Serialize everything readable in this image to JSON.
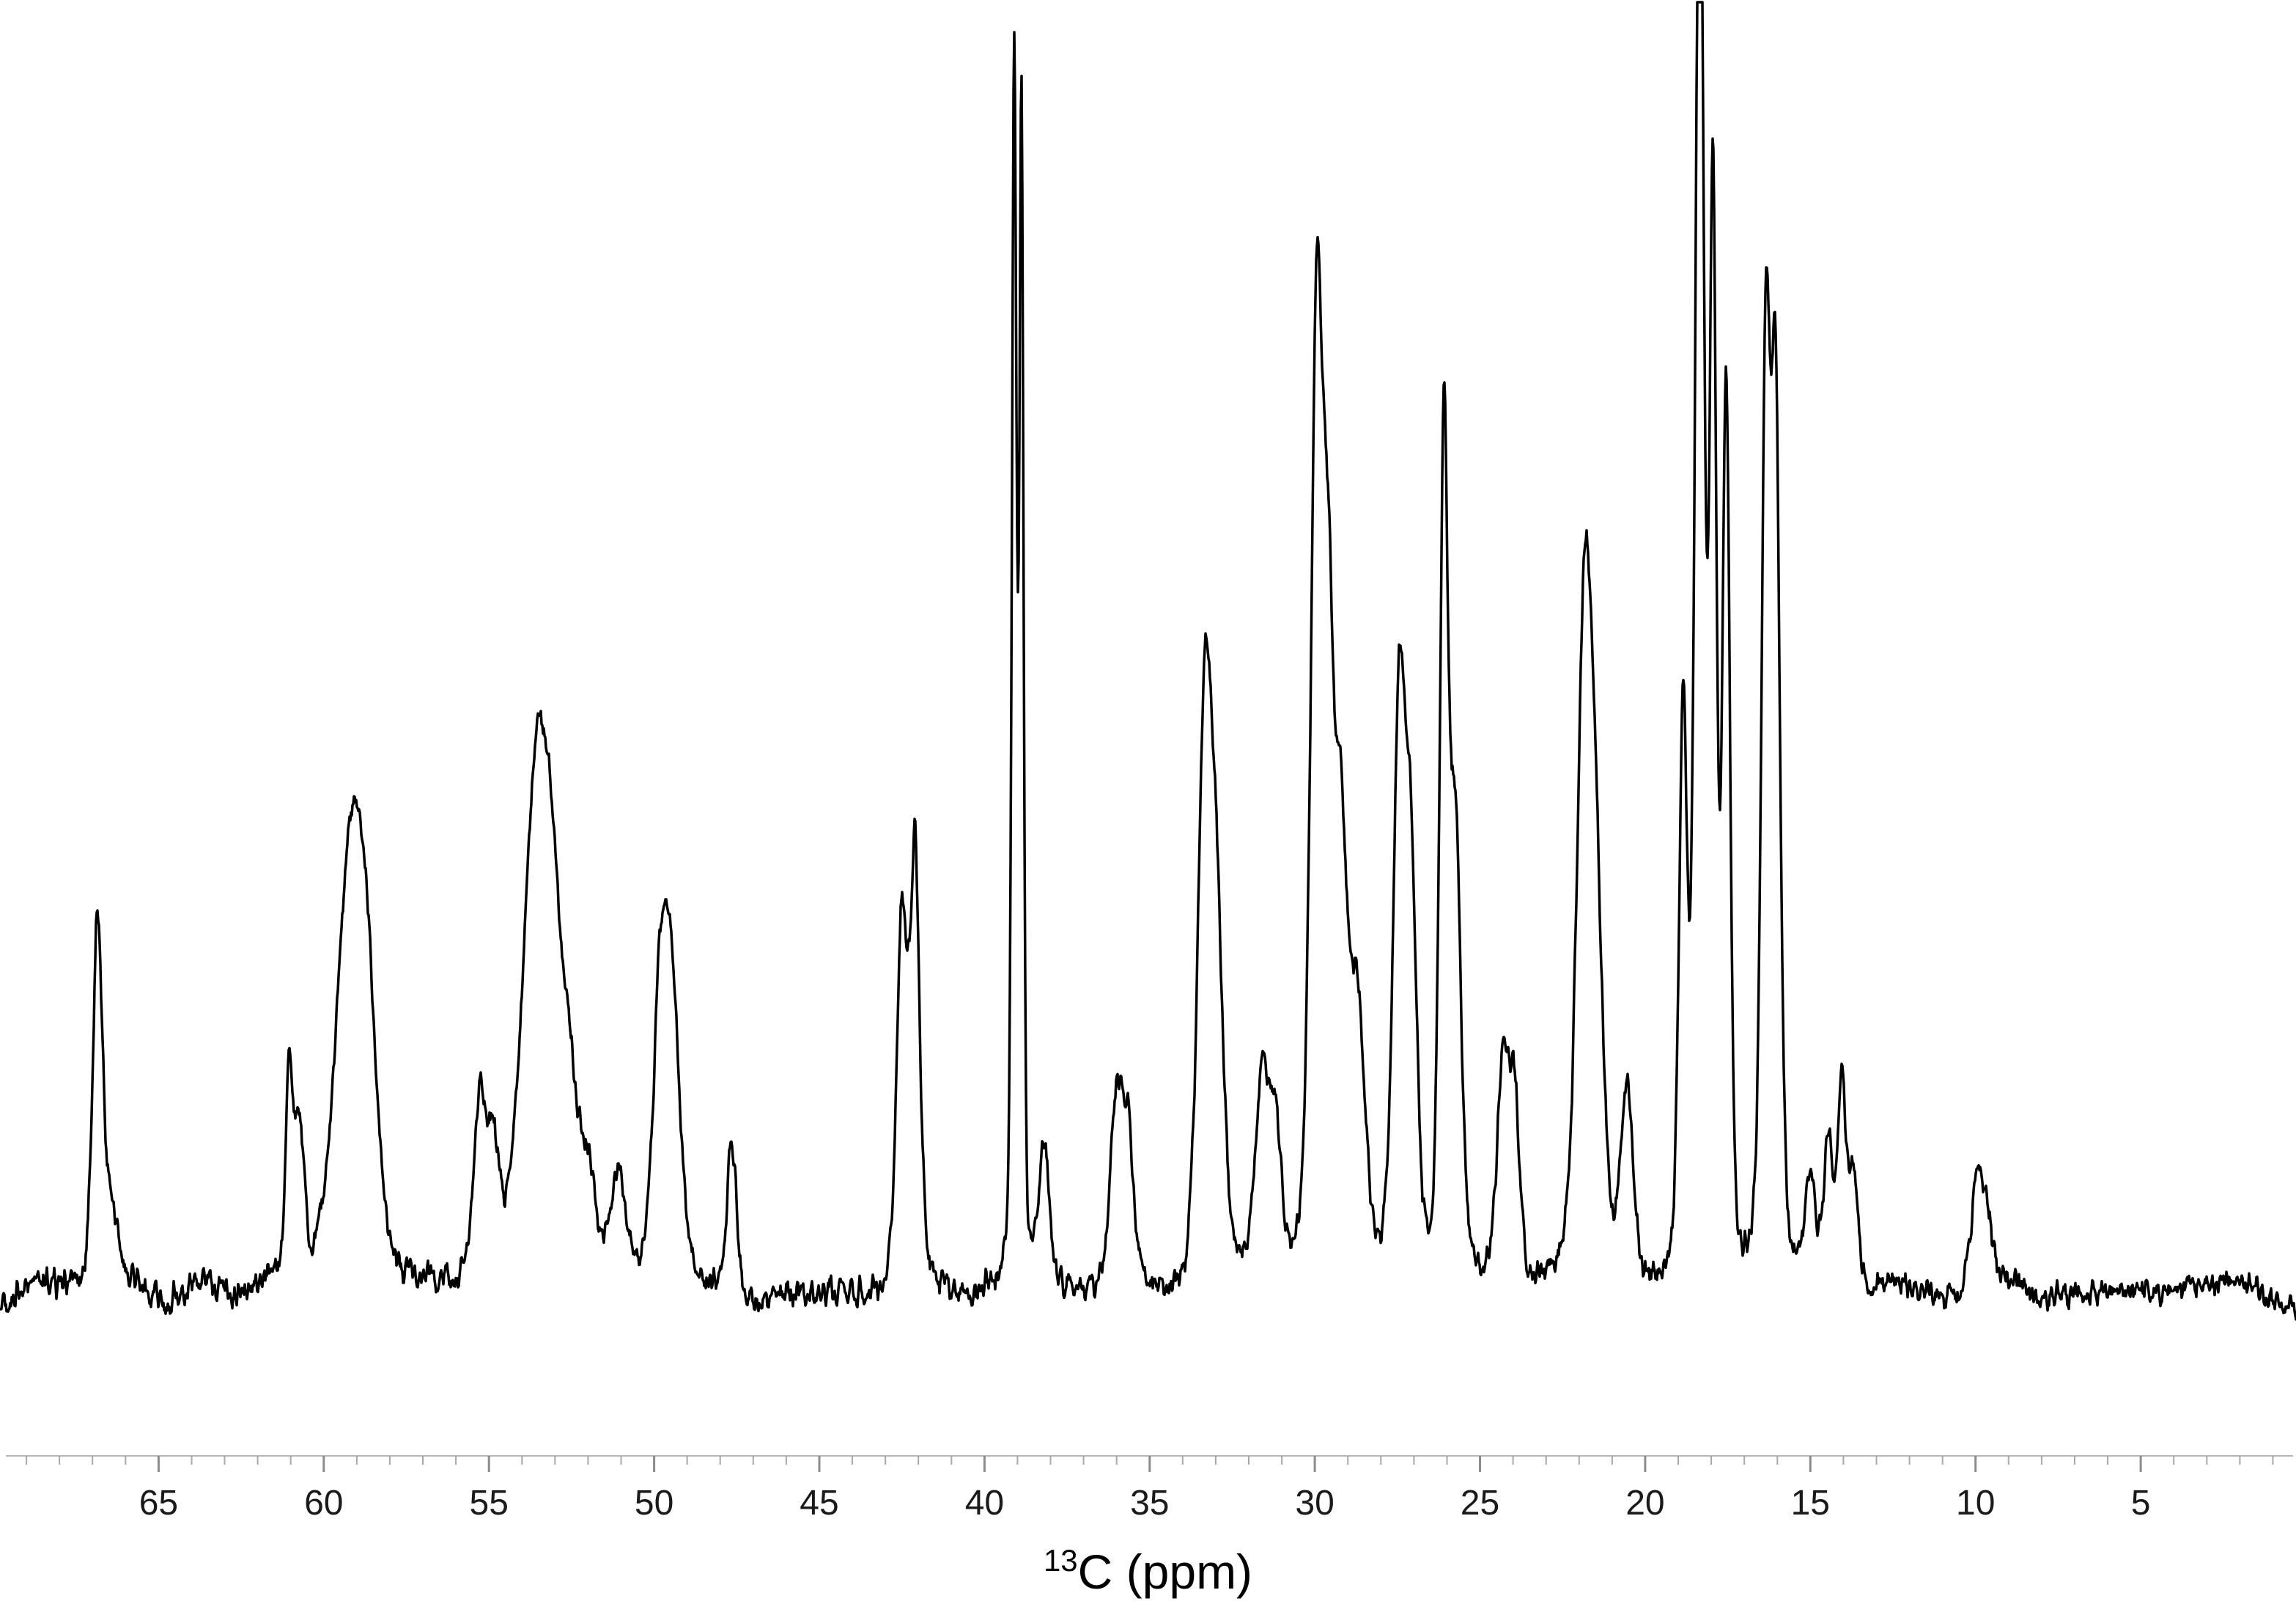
{
  "chart_data": {
    "type": "line",
    "title": "",
    "xlabel_isotope": "13",
    "xlabel_rest": "C (ppm)",
    "x_axis": {
      "left_ppm": 69.8,
      "right_ppm": 0.3,
      "unit": "ppm",
      "major_ticks": [
        65,
        60,
        55,
        50,
        45,
        40,
        35,
        30,
        25,
        20,
        15,
        10,
        5
      ],
      "minor_tick_step": 1
    },
    "y_axis": {
      "visible": false,
      "range": [
        0,
        1
      ]
    },
    "line_color": "#000000",
    "line_width": 3.5,
    "background": "#ffffff",
    "noise_amplitude": 0.012,
    "notes": "Solid-state style 13C NMR spectrum; tallest peak near 18.3 ppm is clipped at the top edge of the figure.",
    "peaks_format": [
      "ppm",
      "relative_height_0_to_1",
      "approx_fwhm_ppm"
    ],
    "peaks": [
      [
        66.85,
        0.27,
        0.32
      ],
      [
        66.5,
        0.06,
        0.6
      ],
      [
        61.05,
        0.16,
        0.22
      ],
      [
        60.75,
        0.12,
        0.35
      ],
      [
        59.2,
        0.32,
        1.0
      ],
      [
        58.7,
        0.14,
        0.7
      ],
      [
        55.3,
        0.12,
        0.4
      ],
      [
        54.9,
        0.09,
        0.45
      ],
      [
        53.6,
        0.34,
        0.9
      ],
      [
        53.1,
        0.2,
        0.8
      ],
      [
        52.55,
        0.1,
        0.6
      ],
      [
        52.0,
        0.07,
        0.5
      ],
      [
        51.1,
        0.08,
        0.5
      ],
      [
        49.85,
        0.16,
        0.45
      ],
      [
        49.5,
        0.24,
        0.6
      ],
      [
        47.65,
        0.12,
        0.33
      ],
      [
        42.5,
        0.29,
        0.35
      ],
      [
        42.1,
        0.33,
        0.32
      ],
      [
        39.1,
        0.93,
        0.16
      ],
      [
        38.88,
        0.89,
        0.14
      ],
      [
        38.2,
        0.11,
        0.4
      ],
      [
        36.0,
        0.15,
        0.4
      ],
      [
        35.65,
        0.11,
        0.35
      ],
      [
        33.35,
        0.4,
        0.45
      ],
      [
        33.0,
        0.28,
        0.5
      ],
      [
        31.6,
        0.15,
        0.45
      ],
      [
        31.2,
        0.11,
        0.4
      ],
      [
        29.95,
        0.7,
        0.4
      ],
      [
        29.6,
        0.42,
        0.4
      ],
      [
        29.2,
        0.3,
        0.45
      ],
      [
        28.7,
        0.2,
        0.5
      ],
      [
        27.45,
        0.42,
        0.4
      ],
      [
        27.1,
        0.3,
        0.4
      ],
      [
        26.1,
        0.62,
        0.28
      ],
      [
        25.75,
        0.34,
        0.4
      ],
      [
        24.3,
        0.17,
        0.4
      ],
      [
        23.95,
        0.13,
        0.35
      ],
      [
        21.85,
        0.48,
        0.5
      ],
      [
        21.5,
        0.26,
        0.5
      ],
      [
        20.55,
        0.15,
        0.4
      ],
      [
        18.85,
        0.42,
        0.28
      ],
      [
        18.35,
        1.15,
        0.3
      ],
      [
        17.95,
        0.8,
        0.24
      ],
      [
        17.55,
        0.68,
        0.26
      ],
      [
        16.35,
        0.68,
        0.3
      ],
      [
        16.05,
        0.64,
        0.3
      ],
      [
        15.0,
        0.08,
        0.35
      ],
      [
        14.45,
        0.11,
        0.3
      ],
      [
        14.05,
        0.15,
        0.28
      ],
      [
        13.7,
        0.09,
        0.3
      ],
      [
        9.95,
        0.1,
        0.35
      ],
      [
        9.6,
        0.05,
        0.3
      ]
    ]
  }
}
